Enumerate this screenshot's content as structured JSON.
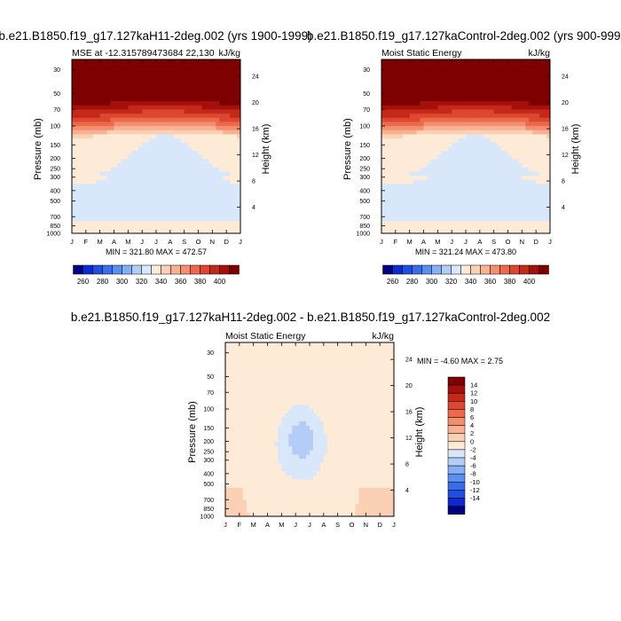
{
  "titles": {
    "left": "b.e21.B1850.f19_g17.127kaH11-2deg.002 (yrs 1900-1999)",
    "right": "b.e21.B1850.f19_g17.127kaControl-2deg.002 (yrs 900-999)",
    "bottom": "b.e21.B1850.f19_g17.127kaH11-2deg.002 - b.e21.B1850.f19_g17.127kaControl-2deg.002"
  },
  "chart_data": [
    {
      "type": "heatmap",
      "panel": "left",
      "subtitle": "MSE at -12.315789473684 22,130",
      "units": "kJ/kg",
      "ylabel": "Pressure (mb)",
      "ylabel_right": "Height (km)",
      "x_ticks": [
        "J",
        "F",
        "M",
        "A",
        "M",
        "J",
        "J",
        "A",
        "S",
        "O",
        "N",
        "D",
        "J"
      ],
      "y_ticks": [
        "30",
        "50",
        "70",
        "100",
        "150",
        "200",
        "250",
        "300",
        "400",
        "500",
        "700",
        "850",
        "1000"
      ],
      "y_ticks_right": [
        "24",
        "20",
        "16",
        "12",
        "8",
        "4"
      ],
      "stats": "MIN = 321.80 MAX = 472.57",
      "colorbar_labels": [
        "260",
        "280",
        "300",
        "320",
        "340",
        "360",
        "380",
        "400"
      ],
      "value_range": [
        321.8,
        472.57
      ]
    },
    {
      "type": "heatmap",
      "panel": "right",
      "subtitle": "Moist Static Energy",
      "units": "kJ/kg",
      "ylabel": "Pressure (mb)",
      "ylabel_right": "Height (km)",
      "x_ticks": [
        "J",
        "F",
        "M",
        "A",
        "M",
        "J",
        "J",
        "A",
        "S",
        "O",
        "N",
        "D",
        "J"
      ],
      "y_ticks": [
        "30",
        "50",
        "70",
        "100",
        "150",
        "200",
        "250",
        "300",
        "400",
        "500",
        "700",
        "850",
        "1000"
      ],
      "y_ticks_right": [
        "24",
        "20",
        "16",
        "12",
        "8",
        "4"
      ],
      "stats": "MIN = 321.24 MAX = 473.80",
      "colorbar_labels": [
        "260",
        "280",
        "300",
        "320",
        "340",
        "360",
        "380",
        "400"
      ],
      "value_range": [
        321.24,
        473.8
      ]
    },
    {
      "type": "heatmap",
      "panel": "difference",
      "subtitle": "Moist Static Energy",
      "units": "kJ/kg",
      "ylabel": "Pressure (mb)",
      "ylabel_right": "Height (km)",
      "x_ticks": [
        "J",
        "F",
        "M",
        "A",
        "M",
        "J",
        "J",
        "A",
        "S",
        "O",
        "N",
        "D",
        "J"
      ],
      "y_ticks": [
        "30",
        "50",
        "70",
        "100",
        "150",
        "200",
        "250",
        "300",
        "400",
        "500",
        "700",
        "850",
        "1000"
      ],
      "y_ticks_right": [
        "24",
        "20",
        "16",
        "12",
        "8",
        "4"
      ],
      "stats": "MIN =  -4.60 MAX =   2.75",
      "colorbar_labels": [
        "14",
        "12",
        "10",
        "8",
        "6",
        "4",
        "2",
        "0",
        "-2",
        "-4",
        "-6",
        "-8",
        "-10",
        "-12",
        "-14"
      ],
      "value_range": [
        -4.6,
        2.75
      ]
    }
  ],
  "colors": {
    "abs_scale": [
      "#000080",
      "#0d2ad0",
      "#1f4ee0",
      "#3a6ee8",
      "#5b8ef0",
      "#86b0f4",
      "#b3cdf7",
      "#d9e7fb",
      "#fdebd8",
      "#fbd0b4",
      "#f8b193",
      "#f38f6f",
      "#ec6a4c",
      "#dd4630",
      "#c42818",
      "#a50f0c",
      "#7e0000"
    ],
    "diff_scale": [
      "#7e0000",
      "#a50f0c",
      "#c42818",
      "#dd4630",
      "#ec6a4c",
      "#f38f6f",
      "#f8b193",
      "#fbd0b4",
      "#fdebd8",
      "#d9e7fb",
      "#b3cdf7",
      "#86b0f4",
      "#5b8ef0",
      "#3a6ee8",
      "#1f4ee0",
      "#0d2ad0",
      "#000080"
    ]
  }
}
